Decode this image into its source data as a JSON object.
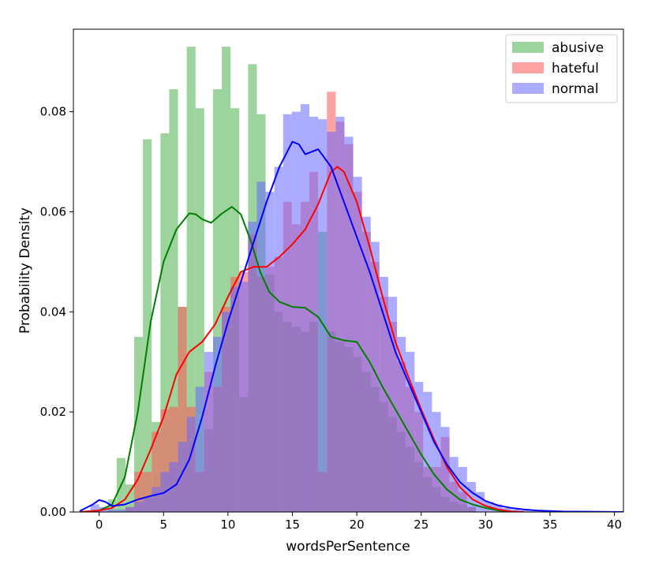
{
  "chart_data": {
    "type": "histogram-kde",
    "xlabel": "wordsPerSentence",
    "ylabel": "Probability Density",
    "xlim": [
      -2,
      40.7
    ],
    "ylim": [
      0,
      0.0965
    ],
    "xticks": [
      0,
      5,
      10,
      15,
      20,
      25,
      30,
      35,
      40
    ],
    "yticks": [
      0.0,
      0.02,
      0.04,
      0.06,
      0.08
    ],
    "ytick_labels": [
      "0.00",
      "0.02",
      "0.04",
      "0.06",
      "0.08"
    ],
    "legend_position": "top-right",
    "bin_width": 0.68,
    "series": [
      {
        "name": "abusive",
        "bar_color": "#4daf4a",
        "line_color": "#008000",
        "bars": [
          [
            0.34,
            0.0
          ],
          [
            1.02,
            0.0025
          ],
          [
            1.7,
            0.0108
          ],
          [
            2.38,
            0.0055
          ],
          [
            3.06,
            0.035
          ],
          [
            3.74,
            0.0745
          ],
          [
            4.42,
            0.018
          ],
          [
            5.1,
            0.0757
          ],
          [
            5.78,
            0.0845
          ],
          [
            6.46,
            0.041
          ],
          [
            7.14,
            0.093
          ],
          [
            7.82,
            0.0807
          ],
          [
            8.5,
            0.0165
          ],
          [
            9.18,
            0.0845
          ],
          [
            9.86,
            0.093
          ],
          [
            10.54,
            0.0807
          ],
          [
            11.22,
            0.023
          ],
          [
            11.9,
            0.0895
          ],
          [
            12.58,
            0.0795
          ],
          [
            13.26,
            0.0475
          ],
          [
            13.94,
            0.04
          ],
          [
            14.62,
            0.038
          ],
          [
            15.3,
            0.037
          ],
          [
            15.98,
            0.036
          ],
          [
            16.66,
            0.038
          ],
          [
            17.34,
            0.056
          ],
          [
            18.02,
            0.036
          ],
          [
            18.7,
            0.034
          ],
          [
            19.38,
            0.033
          ],
          [
            20.06,
            0.031
          ],
          [
            20.74,
            0.028
          ],
          [
            21.42,
            0.025
          ],
          [
            22.1,
            0.022
          ],
          [
            22.78,
            0.019
          ],
          [
            23.46,
            0.016
          ],
          [
            24.14,
            0.013
          ],
          [
            24.82,
            0.01
          ],
          [
            25.5,
            0.007
          ],
          [
            26.18,
            0.005
          ],
          [
            26.86,
            0.003
          ],
          [
            27.54,
            0.002
          ],
          [
            28.22,
            0.0015
          ],
          [
            28.9,
            0.001
          ]
        ],
        "kde": [
          [
            -1.5,
            0.0
          ],
          [
            0.0,
            0.0003
          ],
          [
            1.0,
            0.0015
          ],
          [
            2.0,
            0.007
          ],
          [
            3.0,
            0.02
          ],
          [
            4.0,
            0.038
          ],
          [
            5.0,
            0.05
          ],
          [
            6.0,
            0.0565
          ],
          [
            7.0,
            0.0597
          ],
          [
            7.5,
            0.0595
          ],
          [
            8.0,
            0.0585
          ],
          [
            8.7,
            0.0578
          ],
          [
            9.5,
            0.0596
          ],
          [
            10.3,
            0.061
          ],
          [
            11.0,
            0.0595
          ],
          [
            11.8,
            0.054
          ],
          [
            12.5,
            0.048
          ],
          [
            13.2,
            0.044
          ],
          [
            14.0,
            0.042
          ],
          [
            15.0,
            0.041
          ],
          [
            16.0,
            0.0408
          ],
          [
            17.0,
            0.039
          ],
          [
            18.0,
            0.035
          ],
          [
            19.0,
            0.0343
          ],
          [
            20.0,
            0.034
          ],
          [
            21.0,
            0.03
          ],
          [
            22.0,
            0.025
          ],
          [
            23.0,
            0.0205
          ],
          [
            24.0,
            0.016
          ],
          [
            25.0,
            0.0115
          ],
          [
            26.0,
            0.0075
          ],
          [
            27.0,
            0.0045
          ],
          [
            28.0,
            0.0025
          ],
          [
            29.0,
            0.0015
          ],
          [
            30.0,
            0.0008
          ],
          [
            31.0,
            0.0003
          ],
          [
            32.0,
            0.0
          ]
        ]
      },
      {
        "name": "hateful",
        "bar_color": "#ff5555",
        "line_color": "#ff0000",
        "bars": [
          [
            2.38,
            0.001
          ],
          [
            3.06,
            0.008
          ],
          [
            3.74,
            0.008
          ],
          [
            4.42,
            0.016
          ],
          [
            5.1,
            0.0205
          ],
          [
            5.78,
            0.021
          ],
          [
            6.46,
            0.041
          ],
          [
            7.14,
            0.021
          ],
          [
            7.82,
            0.008
          ],
          [
            8.5,
            0.028
          ],
          [
            9.18,
            0.025
          ],
          [
            9.86,
            0.041
          ],
          [
            10.54,
            0.047
          ],
          [
            11.22,
            0.048
          ],
          [
            11.9,
            0.0555
          ],
          [
            12.58,
            0.047
          ],
          [
            13.26,
            0.049
          ],
          [
            13.94,
            0.051
          ],
          [
            14.62,
            0.062
          ],
          [
            15.3,
            0.0575
          ],
          [
            15.98,
            0.062
          ],
          [
            16.66,
            0.068
          ],
          [
            17.34,
            0.008
          ],
          [
            18.02,
            0.084
          ],
          [
            18.7,
            0.078
          ],
          [
            19.38,
            0.0735
          ],
          [
            20.06,
            0.064
          ],
          [
            20.74,
            0.056
          ],
          [
            21.42,
            0.05
          ],
          [
            22.1,
            0.043
          ],
          [
            22.78,
            0.038
          ],
          [
            23.46,
            0.03
          ],
          [
            24.14,
            0.025
          ],
          [
            24.82,
            0.02
          ],
          [
            25.5,
            0.009
          ],
          [
            26.18,
            0.009
          ],
          [
            26.86,
            0.015
          ],
          [
            27.54,
            0.006
          ],
          [
            28.22,
            0.004
          ],
          [
            28.9,
            0.001
          ]
        ],
        "kde": [
          [
            -1.5,
            0.0
          ],
          [
            0.0,
            0.0003
          ],
          [
            1.0,
            0.0008
          ],
          [
            2.0,
            0.0025
          ],
          [
            3.0,
            0.0065
          ],
          [
            4.0,
            0.0125
          ],
          [
            5.0,
            0.019
          ],
          [
            6.0,
            0.0275
          ],
          [
            7.0,
            0.032
          ],
          [
            8.0,
            0.034
          ],
          [
            9.0,
            0.0375
          ],
          [
            10.0,
            0.043
          ],
          [
            11.0,
            0.048
          ],
          [
            12.0,
            0.049
          ],
          [
            13.0,
            0.049
          ],
          [
            14.0,
            0.051
          ],
          [
            15.0,
            0.0535
          ],
          [
            16.0,
            0.0565
          ],
          [
            17.0,
            0.0615
          ],
          [
            18.0,
            0.068
          ],
          [
            18.5,
            0.069
          ],
          [
            19.0,
            0.068
          ],
          [
            20.0,
            0.062
          ],
          [
            21.0,
            0.053
          ],
          [
            22.0,
            0.043
          ],
          [
            23.0,
            0.034
          ],
          [
            24.0,
            0.027
          ],
          [
            25.0,
            0.0205
          ],
          [
            26.0,
            0.0145
          ],
          [
            27.0,
            0.009
          ],
          [
            28.0,
            0.005
          ],
          [
            29.0,
            0.0025
          ],
          [
            30.0,
            0.0012
          ],
          [
            31.0,
            0.0005
          ],
          [
            32.0,
            0.0001
          ],
          [
            33.0,
            0.0
          ]
        ]
      },
      {
        "name": "normal",
        "bar_color": "#6666ff",
        "line_color": "#0000ff",
        "bars": [
          [
            -0.34,
            0.0015
          ],
          [
            0.34,
            0.001
          ],
          [
            1.02,
            0.0005
          ],
          [
            1.7,
            0.0005
          ],
          [
            2.38,
            0.001
          ],
          [
            3.06,
            0.002
          ],
          [
            3.74,
            0.003
          ],
          [
            4.42,
            0.005
          ],
          [
            5.1,
            0.008
          ],
          [
            5.78,
            0.01
          ],
          [
            6.46,
            0.014
          ],
          [
            7.14,
            0.019
          ],
          [
            7.82,
            0.025
          ],
          [
            8.5,
            0.032
          ],
          [
            9.18,
            0.035
          ],
          [
            9.86,
            0.04
          ],
          [
            10.54,
            0.045
          ],
          [
            11.22,
            0.046
          ],
          [
            11.9,
            0.058
          ],
          [
            12.58,
            0.066
          ],
          [
            13.26,
            0.064
          ],
          [
            13.94,
            0.069
          ],
          [
            14.62,
            0.0795
          ],
          [
            15.3,
            0.08
          ],
          [
            15.98,
            0.0815
          ],
          [
            16.66,
            0.079
          ],
          [
            17.34,
            0.0785
          ],
          [
            18.02,
            0.076
          ],
          [
            18.7,
            0.079
          ],
          [
            19.38,
            0.075
          ],
          [
            20.06,
            0.067
          ],
          [
            20.74,
            0.059
          ],
          [
            21.42,
            0.054
          ],
          [
            22.1,
            0.047
          ],
          [
            22.78,
            0.043
          ],
          [
            23.46,
            0.035
          ],
          [
            24.14,
            0.032
          ],
          [
            24.82,
            0.026
          ],
          [
            25.5,
            0.024
          ],
          [
            26.18,
            0.02
          ],
          [
            26.86,
            0.017
          ],
          [
            27.54,
            0.011
          ],
          [
            28.22,
            0.009
          ],
          [
            28.9,
            0.006
          ],
          [
            29.58,
            0.004
          ],
          [
            30.26,
            0.002
          ],
          [
            30.94,
            0.0015
          ],
          [
            31.62,
            0.0008
          ],
          [
            32.3,
            0.0005
          ],
          [
            32.98,
            0.0003
          ],
          [
            33.66,
            0.0002
          ],
          [
            34.34,
            0.0001
          ]
        ],
        "kde": [
          [
            -1.5,
            0.0002
          ],
          [
            -0.5,
            0.0015
          ],
          [
            0.0,
            0.0024
          ],
          [
            0.5,
            0.002
          ],
          [
            1.0,
            0.0012
          ],
          [
            2.0,
            0.0015
          ],
          [
            3.0,
            0.0025
          ],
          [
            4.0,
            0.0032
          ],
          [
            5.0,
            0.0038
          ],
          [
            6.0,
            0.0055
          ],
          [
            7.0,
            0.0105
          ],
          [
            8.0,
            0.019
          ],
          [
            9.0,
            0.029
          ],
          [
            10.0,
            0.038
          ],
          [
            11.0,
            0.046
          ],
          [
            12.0,
            0.054
          ],
          [
            13.0,
            0.062
          ],
          [
            14.0,
            0.069
          ],
          [
            15.0,
            0.074
          ],
          [
            15.5,
            0.0735
          ],
          [
            16.0,
            0.0715
          ],
          [
            17.0,
            0.0725
          ],
          [
            18.0,
            0.069
          ],
          [
            19.0,
            0.062
          ],
          [
            20.0,
            0.055
          ],
          [
            21.0,
            0.048
          ],
          [
            22.0,
            0.04
          ],
          [
            23.0,
            0.032
          ],
          [
            24.0,
            0.026
          ],
          [
            25.0,
            0.02
          ],
          [
            26.0,
            0.014
          ],
          [
            27.0,
            0.0095
          ],
          [
            28.0,
            0.006
          ],
          [
            29.0,
            0.0038
          ],
          [
            30.0,
            0.0022
          ],
          [
            31.0,
            0.0013
          ],
          [
            32.0,
            0.0008
          ],
          [
            33.0,
            0.0005
          ],
          [
            34.0,
            0.0003
          ],
          [
            36.0,
            0.0001
          ],
          [
            40.7,
            0.0
          ]
        ]
      }
    ]
  }
}
